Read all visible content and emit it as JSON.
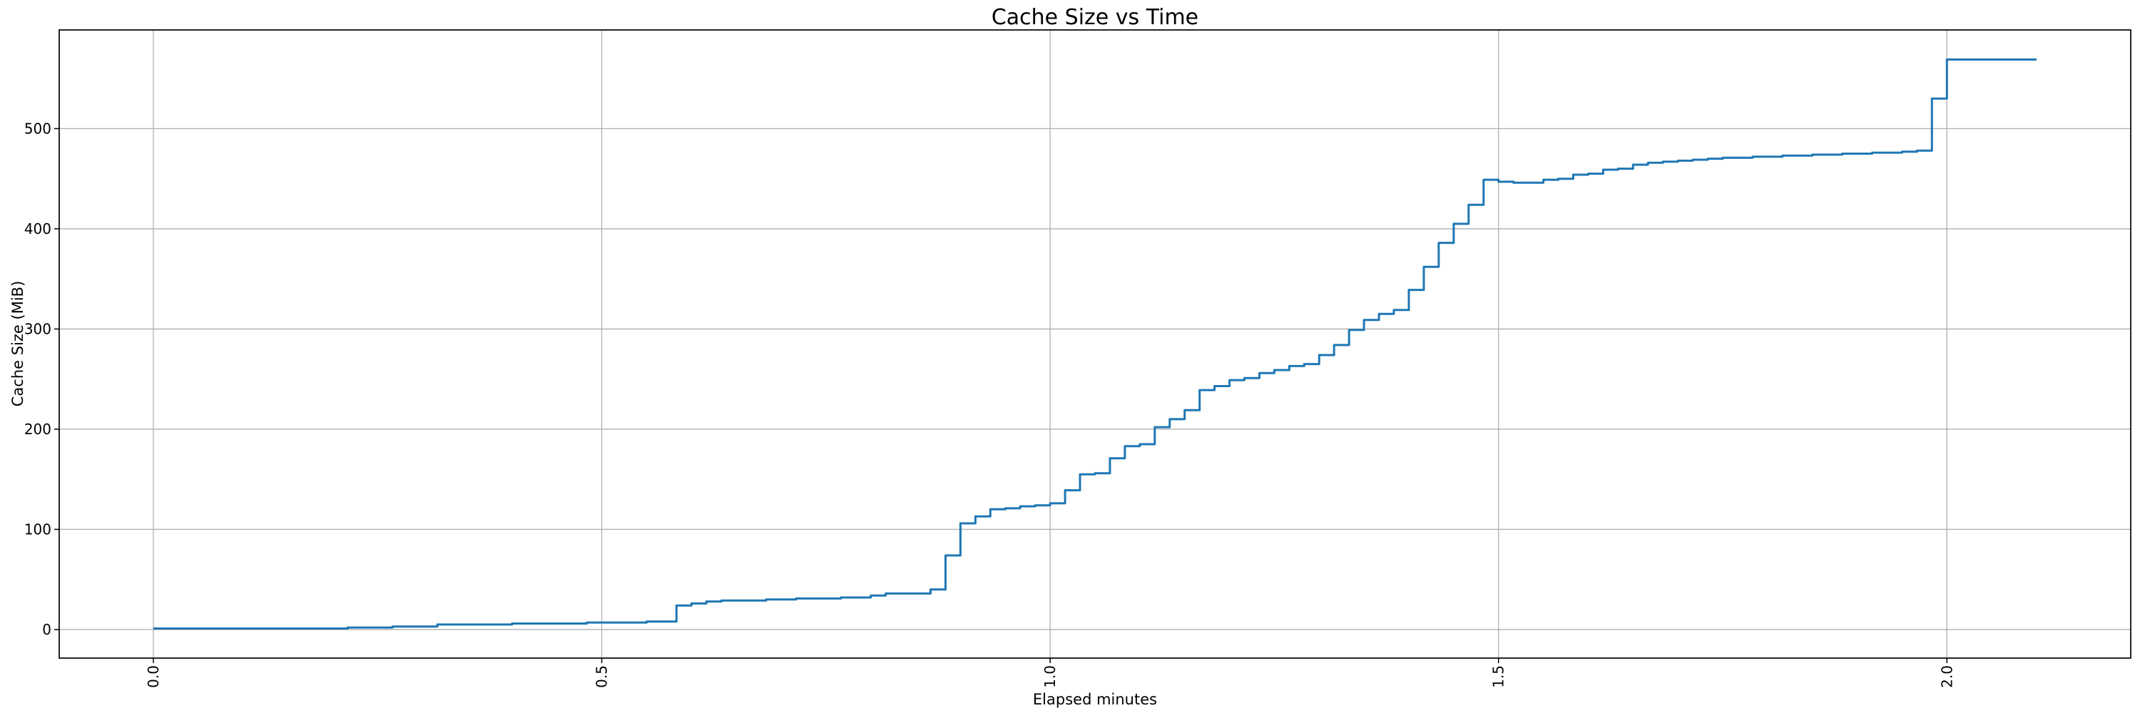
{
  "chart_data": {
    "type": "line",
    "step_mode": "step-after",
    "title": "Cache Size vs Time",
    "xlabel": "Elapsed minutes",
    "ylabel": "Cache Size (MiB)",
    "x_unit": "minutes",
    "sample_interval_seconds": 1,
    "x_start_minutes": 0.0,
    "x_end_minutes": 2.1,
    "xlim": [
      -0.105,
      2.205
    ],
    "ylim": [
      -28.5,
      598.5
    ],
    "x_ticks": [
      0.0,
      0.5,
      1.0,
      1.5,
      2.0
    ],
    "x_tick_labels": [
      "0.0",
      "0.5",
      "1.0",
      "1.5",
      "2.0"
    ],
    "y_ticks": [
      0,
      100,
      200,
      300,
      400,
      500
    ],
    "y_tick_labels": [
      "0",
      "100",
      "200",
      "300",
      "400",
      "500"
    ],
    "grid": true,
    "legend": "none",
    "line_color": "#1f77b4",
    "grid_color": "#b0b0b0",
    "spine_color": "#000000",
    "values_mib": [
      1,
      1,
      1,
      1,
      1,
      1,
      1,
      1,
      1,
      1,
      1,
      1,
      1,
      2,
      2,
      2,
      3,
      3,
      3,
      5,
      5,
      5,
      5,
      5,
      6,
      6,
      6,
      6,
      6,
      7,
      7,
      7,
      7,
      8,
      8,
      24,
      26,
      28,
      29,
      29,
      29,
      30,
      30,
      31,
      31,
      31,
      32,
      32,
      34,
      36,
      36,
      36,
      40,
      74,
      106,
      113,
      120,
      121,
      123,
      124,
      126,
      139,
      155,
      156,
      171,
      183,
      185,
      202,
      210,
      219,
      239,
      243,
      249,
      251,
      256,
      259,
      263,
      265,
      274,
      284,
      299,
      309,
      315,
      319,
      339,
      362,
      386,
      405,
      424,
      449,
      447,
      446,
      446,
      449,
      450,
      454,
      455,
      459,
      460,
      464,
      466,
      467,
      468,
      469,
      470,
      471,
      471,
      472,
      472,
      473,
      473,
      474,
      474,
      475,
      475,
      476,
      476,
      477,
      478,
      530,
      569,
      569,
      569,
      569,
      569,
      569,
      569
    ]
  }
}
